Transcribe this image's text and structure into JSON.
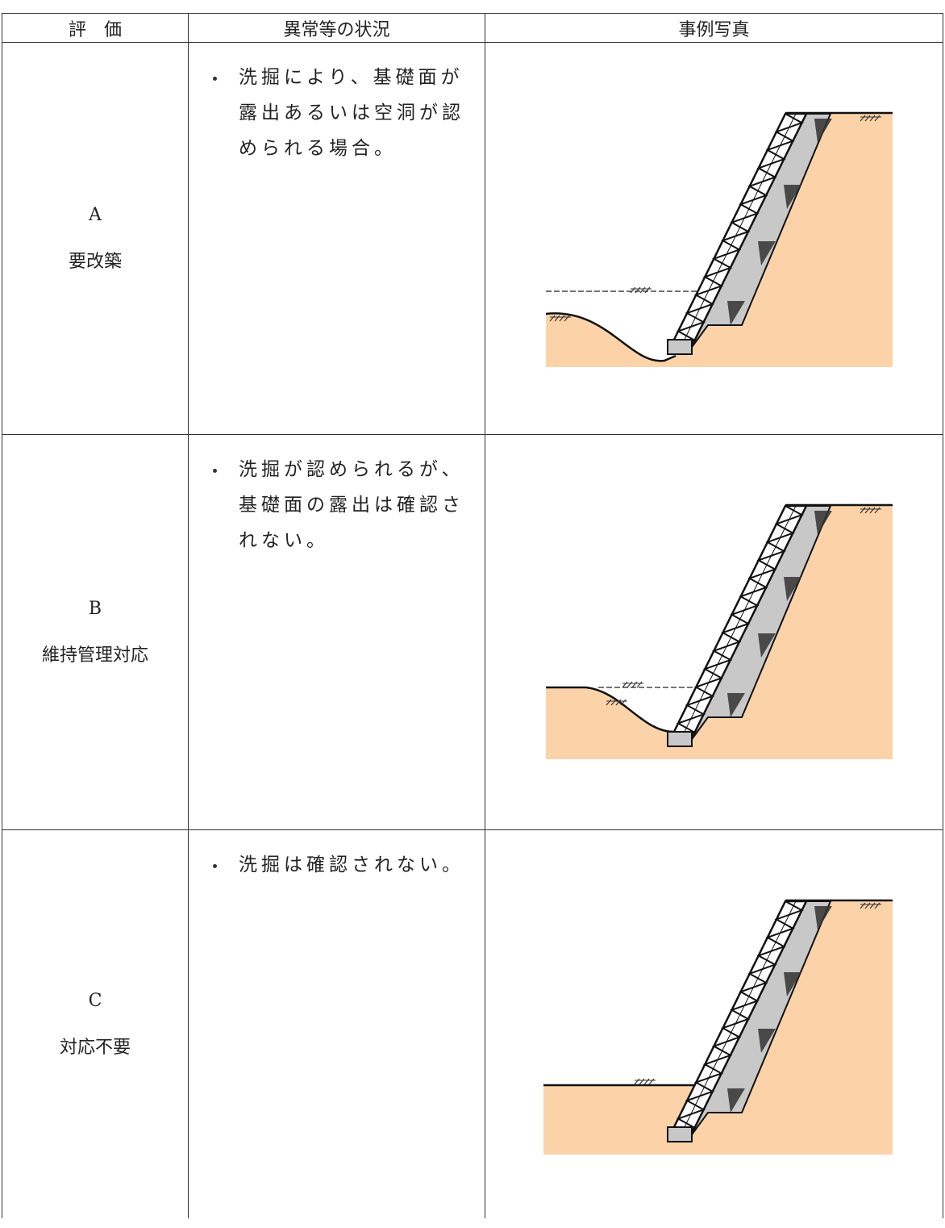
{
  "table": {
    "header": [
      "評　価",
      "異常等の状況",
      "事例写真"
    ],
    "rows": [
      {
        "grade": "A",
        "label": "要改築",
        "condition": "洗掘により、基礎面が露出あるいは空洞が認められる場合。"
      },
      {
        "grade": "B",
        "label": "維持管理対応",
        "condition": "洗掘が認められるが、基礎面の露出は確認されない。"
      },
      {
        "grade": "C",
        "label": "対応不要",
        "condition": "洗掘は確認されない。"
      }
    ]
  }
}
